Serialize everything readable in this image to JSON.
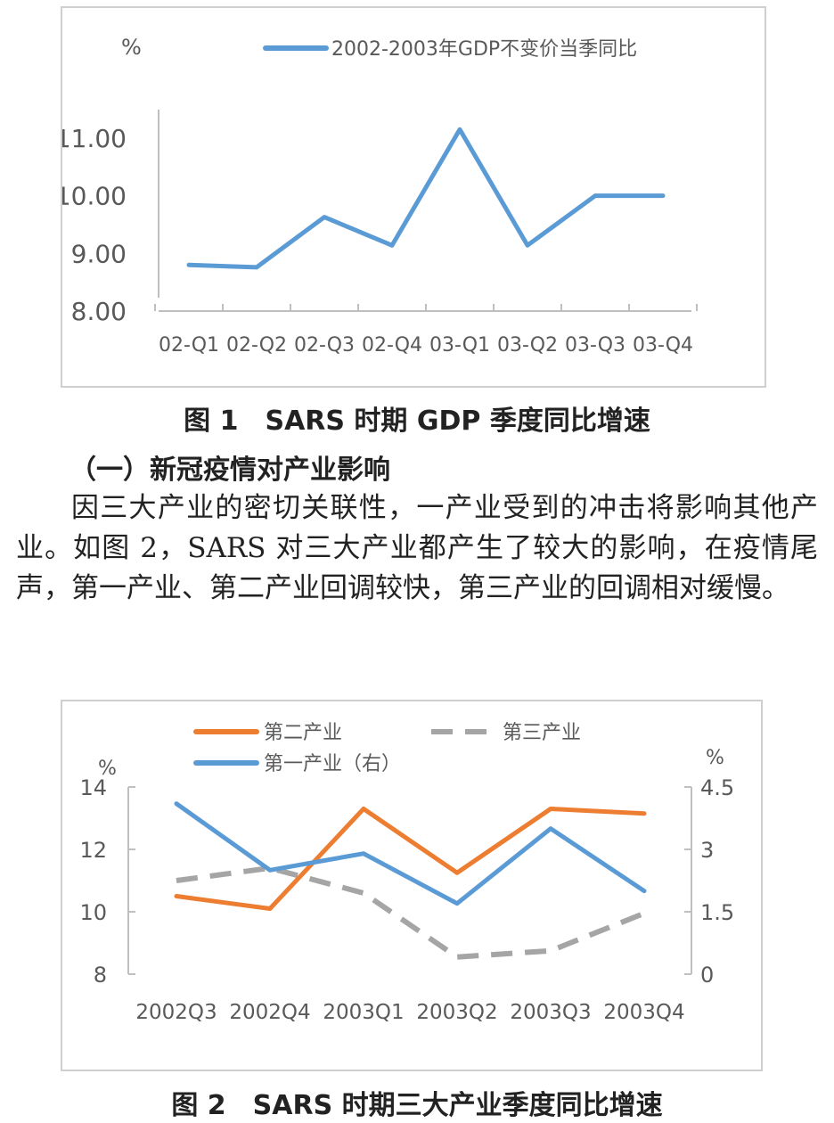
{
  "chart_data": [
    {
      "type": "line",
      "unit_label": "%",
      "categories": [
        "02-Q1",
        "02-Q2",
        "02-Q3",
        "02-Q4",
        "03-Q1",
        "03-Q2",
        "03-Q3",
        "03-Q4"
      ],
      "series": [
        {
          "name": "2002-2003年GDP不变价当季同比",
          "values": [
            8.8,
            8.76,
            9.63,
            9.14,
            11.15,
            9.14,
            10.0,
            10.0
          ],
          "color": "#5b9bd5"
        }
      ],
      "y_ticks": [
        "8.00",
        "9.00",
        "10.00",
        "11.00"
      ],
      "ylim": [
        8,
        11.3
      ],
      "legend_position": "top",
      "grid": false
    },
    {
      "type": "line",
      "left_unit_label": "%",
      "right_unit_label": "%",
      "categories": [
        "2002Q3",
        "2002Q4",
        "2003Q1",
        "2003Q2",
        "2003Q3",
        "2003Q4"
      ],
      "series": [
        {
          "name": "第二产业",
          "axis": "left",
          "values": [
            10.5,
            10.1,
            13.3,
            11.25,
            13.3,
            13.15
          ],
          "color": "#ed7d31",
          "dash": "solid"
        },
        {
          "name": "第三产业",
          "axis": "left",
          "values": [
            11.0,
            11.4,
            10.6,
            8.55,
            8.75,
            9.95
          ],
          "color": "#a5a5a5",
          "dash": "dashed"
        },
        {
          "name": "第一产业（右）",
          "axis": "right",
          "values": [
            4.1,
            2.5,
            2.9,
            1.7,
            3.5,
            2.0
          ],
          "color": "#5b9bd5",
          "dash": "solid"
        }
      ],
      "left_ticks": [
        "8",
        "10",
        "12",
        "14"
      ],
      "ylim_left": [
        8,
        14
      ],
      "right_ticks": [
        "0",
        "1.5",
        "3",
        "4.5"
      ],
      "ylim_right": [
        0,
        4.5
      ],
      "legend_position": "top",
      "grid": false
    }
  ],
  "captions": {
    "fig1": "图 1　SARS 时期 GDP 季度同比增速",
    "fig2": "图 2　SARS 时期三大产业季度同比增速"
  },
  "section_heading": "（一）新冠疫情对产业影响",
  "body_text": "因三大产业的密切关联性，一产业受到的冲击将影响其他产业。如图 2，SARS 对三大产业都产生了较大的影响，在疫情尾声，第一产业、第二产业回调较快，第三产业的回调相对缓慢。"
}
